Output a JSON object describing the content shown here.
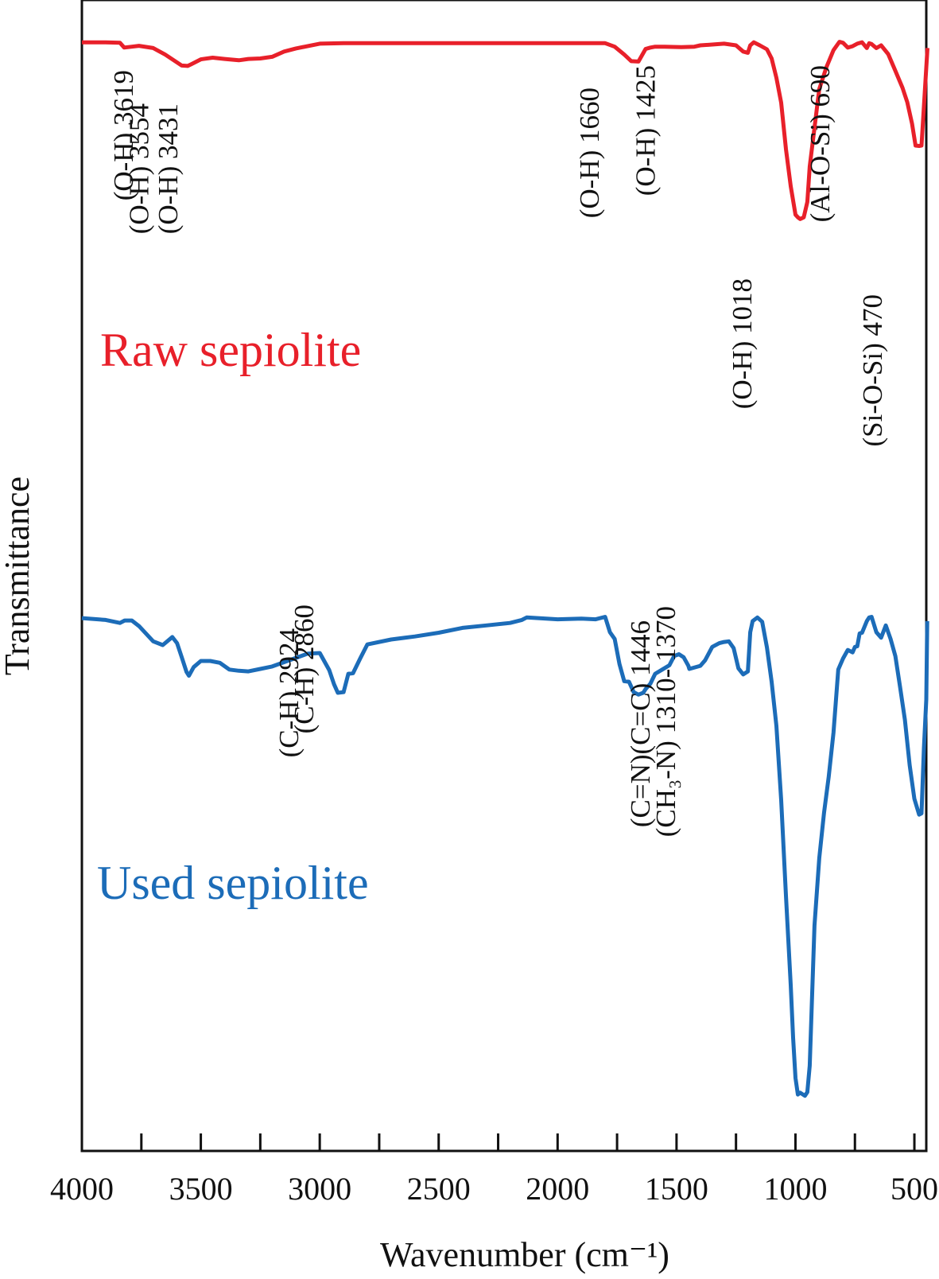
{
  "chart_data": {
    "type": "line",
    "title": "",
    "xlabel": "Wavenumber (cm⁻¹)",
    "ylabel": "Transmittance",
    "xlim": [
      4000,
      450
    ],
    "ylim": [
      0,
      100
    ],
    "x_reversed": true,
    "grid": false,
    "xticks": [
      4000,
      3500,
      3000,
      2500,
      2000,
      1500,
      1000,
      500
    ],
    "xtick_labels": [
      "4000",
      "3500",
      "3000",
      "2500",
      "2000",
      "1500",
      "1000",
      "500"
    ],
    "series": [
      {
        "name": "Raw sepiolite",
        "color": "#e8202a",
        "x": [
          4000,
          3900,
          3840,
          3822,
          3790,
          3760,
          3700,
          3650,
          3580,
          3555,
          3540,
          3500,
          3450,
          3400,
          3340,
          3300,
          3250,
          3200,
          3150,
          3100,
          3000,
          2900,
          2800,
          2600,
          2400,
          2200,
          2000,
          1900,
          1800,
          1760,
          1720,
          1690,
          1660,
          1630,
          1610,
          1590,
          1550,
          1480,
          1425,
          1400,
          1350,
          1300,
          1250,
          1220,
          1200,
          1190,
          1175,
          1150,
          1120,
          1100,
          1080,
          1060,
          1040,
          1020,
          1000,
          990,
          980,
          965,
          950,
          940,
          900,
          870,
          840,
          815,
          800,
          780,
          760,
          740,
          720,
          700,
          690,
          680,
          660,
          640,
          610,
          580,
          550,
          530,
          510,
          495,
          480,
          470,
          460,
          445
        ],
        "y": [
          97.6,
          97.6,
          97.5,
          96.4,
          96.6,
          96.8,
          96.3,
          94.8,
          92.3,
          92.2,
          92.6,
          93.7,
          94.1,
          93.8,
          93.5,
          93.8,
          93.9,
          94.3,
          95.5,
          96.2,
          97.3,
          97.4,
          97.4,
          97.4,
          97.4,
          97.4,
          97.4,
          97.4,
          97.4,
          96.6,
          94.8,
          93.3,
          93.2,
          96.1,
          96.4,
          96.6,
          96.6,
          96.5,
          96.6,
          96.9,
          97.1,
          97.3,
          96.9,
          95.5,
          95.2,
          96.9,
          97.6,
          96.9,
          96.0,
          93.9,
          89.5,
          83.8,
          73.2,
          64.7,
          58.2,
          57.6,
          57.2,
          57.6,
          61.1,
          69.2,
          86.9,
          91.9,
          95.8,
          97.7,
          97.5,
          96.4,
          96.7,
          97.3,
          97.6,
          96.3,
          97.4,
          97.2,
          96.3,
          96.9,
          94.9,
          91.1,
          87.2,
          83.9,
          79.0,
          74.0,
          73.9,
          74.0,
          82.9,
          96.3
        ]
      },
      {
        "name": "Used sepiolite",
        "color": "#1c6cb8",
        "x": [
          4000,
          3900,
          3840,
          3820,
          3790,
          3760,
          3700,
          3660,
          3620,
          3600,
          3580,
          3560,
          3550,
          3530,
          3500,
          3460,
          3420,
          3380,
          3340,
          3300,
          3250,
          3200,
          3150,
          3100,
          3050,
          3000,
          2960,
          2940,
          2924,
          2900,
          2880,
          2860,
          2830,
          2800,
          2700,
          2600,
          2500,
          2400,
          2300,
          2200,
          2150,
          2130,
          2000,
          1900,
          1840,
          1800,
          1780,
          1760,
          1740,
          1720,
          1700,
          1680,
          1660,
          1640,
          1630,
          1610,
          1590,
          1560,
          1530,
          1510,
          1490,
          1470,
          1450,
          1446,
          1400,
          1380,
          1350,
          1320,
          1300,
          1280,
          1260,
          1240,
          1220,
          1200,
          1190,
          1180,
          1160,
          1140,
          1120,
          1100,
          1080,
          1060,
          1040,
          1020,
          1010,
          1000,
          990,
          980,
          960,
          950,
          940,
          920,
          900,
          880,
          860,
          840,
          820,
          800,
          790,
          780,
          760,
          750,
          740,
          730,
          720,
          700,
          690,
          680,
          660,
          640,
          620,
          600,
          580,
          560,
          540,
          520,
          500,
          480,
          470,
          460,
          450,
          446
        ],
        "y": [
          80.9,
          80.6,
          80.1,
          80.5,
          80.5,
          79.6,
          77.1,
          76.5,
          77.8,
          76.8,
          74.5,
          72.1,
          71.5,
          72.9,
          73.9,
          73.9,
          73.6,
          72.5,
          72.3,
          72.2,
          72.6,
          73.0,
          73.7,
          74.4,
          75.1,
          75.2,
          72.4,
          70.1,
          68.7,
          68.8,
          71.8,
          71.9,
          74.3,
          76.6,
          77.4,
          77.9,
          78.5,
          79.3,
          79.7,
          80.1,
          80.6,
          81.0,
          80.7,
          80.8,
          80.7,
          81.1,
          78.6,
          77.5,
          73.4,
          70.6,
          70.5,
          68.8,
          68.4,
          68.7,
          69.3,
          70.2,
          71.8,
          72.5,
          73.2,
          74.7,
          75.0,
          74.5,
          73.1,
          72.6,
          73.1,
          74.0,
          76.2,
          76.8,
          77.0,
          77.1,
          76.0,
          72.7,
          71.7,
          72.2,
          78.6,
          80.4,
          81.0,
          80.3,
          76.1,
          70.5,
          63.3,
          51.2,
          35.6,
          21.0,
          12.4,
          5.8,
          3.1,
          3.4,
          2.9,
          3.5,
          7.8,
          30.7,
          41.7,
          49.1,
          55.0,
          62.2,
          72.5,
          74.3,
          75.0,
          75.7,
          75.3,
          76.2,
          76.3,
          78.4,
          78.5,
          80.4,
          81.0,
          81.1,
          78.6,
          77.7,
          79.7,
          77.5,
          74.7,
          69.6,
          64.3,
          56.9,
          51.4,
          48.8,
          49.0,
          59.6,
          67.6,
          80.4
        ]
      }
    ],
    "annotations": [
      {
        "series": "Raw sepiolite",
        "text": "(O-H) 3619",
        "x": 3619
      },
      {
        "series": "Raw sepiolite",
        "text": "(O-H) 3554",
        "x": 3554
      },
      {
        "series": "Raw sepiolite",
        "text": "(O-H) 3431",
        "x": 3431
      },
      {
        "series": "Raw sepiolite",
        "text": "(O-H) 1660",
        "x": 1660
      },
      {
        "series": "Raw sepiolite",
        "text": "(O-H) 1425",
        "x": 1425
      },
      {
        "series": "Raw sepiolite",
        "text": "(O-H) 1018",
        "x": 1018
      },
      {
        "series": "Raw sepiolite",
        "text": "(Al-O-Si) 690",
        "x": 690
      },
      {
        "series": "Raw sepiolite",
        "text": "(Si-O-Si) 470",
        "x": 470
      },
      {
        "series": "Used sepiolite",
        "text": "(C-H) 2924",
        "x": 2924
      },
      {
        "series": "Used sepiolite",
        "text": "(C-H) 2860",
        "x": 2860
      },
      {
        "series": "Used sepiolite",
        "text": "(C=N)(C=C) 1446",
        "x": 1446
      },
      {
        "series": "Used sepiolite",
        "text": "(CH₃-N) 1310- 1370",
        "x": 1340
      }
    ]
  }
}
